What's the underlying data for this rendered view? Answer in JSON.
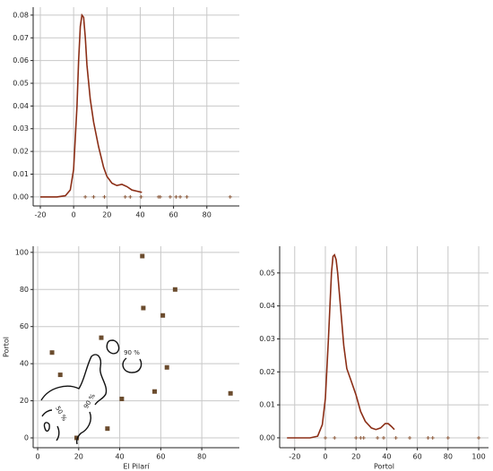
{
  "chart_data": [
    {
      "type": "line",
      "color": "#8b2e16",
      "rug_color": "#8b5a3c",
      "grid": true,
      "x": [
        -20,
        -10,
        -5,
        -2,
        0,
        2,
        3,
        4,
        5,
        6,
        7,
        8,
        10,
        12,
        15,
        18,
        20,
        23,
        26,
        29,
        32,
        35,
        38,
        41
      ],
      "values": [
        0,
        0,
        0.0005,
        0.003,
        0.012,
        0.04,
        0.06,
        0.075,
        0.08,
        0.079,
        0.07,
        0.058,
        0.043,
        0.033,
        0.022,
        0.013,
        0.009,
        0.006,
        0.005,
        0.0055,
        0.0045,
        0.003,
        0.0025,
        0.002
      ],
      "rug": [
        7,
        12,
        18.5,
        31,
        34,
        40.5,
        51,
        52,
        58,
        61.5,
        64,
        68,
        94
      ],
      "xlim": [
        -24.3,
        99.5
      ],
      "xticks": [
        -20,
        0,
        20,
        40,
        60,
        80
      ],
      "ylim": [
        -0.004,
        0.0835
      ],
      "yticks": [
        {
          "value": 0,
          "label": "0.00"
        },
        {
          "value": 0.01,
          "label": "0.01"
        },
        {
          "value": 0.02,
          "label": "0.02"
        },
        {
          "value": 0.03,
          "label": "0.03"
        },
        {
          "value": 0.04,
          "label": "0.04"
        },
        {
          "value": 0.05,
          "label": "0.05"
        },
        {
          "value": 0.06,
          "label": "0.06"
        },
        {
          "value": 0.07,
          "label": "0.07"
        },
        {
          "value": 0.08,
          "label": "0.08"
        }
      ]
    },
    {
      "type": "scatter",
      "color": "#6b4c2e",
      "grid": true,
      "xlabel": "El Pilarí",
      "ylabel": "Portol",
      "x": [
        7,
        11,
        19,
        31,
        34,
        41,
        51,
        51.5,
        57,
        61,
        63,
        67,
        94
      ],
      "values": [
        46,
        34,
        0,
        54,
        5,
        21,
        98,
        70,
        25,
        66,
        38,
        80,
        24
      ],
      "contour_labels": [
        "90 %",
        "90 %",
        "50 %"
      ],
      "xlim": [
        -2.2,
        98.3
      ],
      "xticks": [
        0,
        20,
        40,
        60,
        80
      ],
      "ylim": [
        -5.3,
        103.3
      ],
      "yticks": [
        0,
        20,
        40,
        60,
        80,
        100
      ]
    },
    {
      "type": "line",
      "color": "#8b2e16",
      "rug_color": "#8b5a3c",
      "grid": true,
      "xlabel": "Portol",
      "x": [
        -25,
        -10,
        -5,
        -2,
        0,
        2,
        3,
        4,
        5,
        6,
        7,
        8,
        10,
        12,
        14,
        17,
        20,
        23,
        26,
        30,
        33,
        36,
        39,
        41,
        43,
        45
      ],
      "values": [
        0,
        0,
        0.0005,
        0.004,
        0.012,
        0.03,
        0.04,
        0.05,
        0.055,
        0.0555,
        0.054,
        0.05,
        0.039,
        0.028,
        0.021,
        0.017,
        0.013,
        0.008,
        0.005,
        0.003,
        0.0025,
        0.003,
        0.0043,
        0.0043,
        0.0035,
        0.0025
      ],
      "rug": [
        0,
        6,
        20,
        23,
        25,
        34,
        38,
        46,
        55,
        67,
        70,
        80,
        100
      ],
      "xlim": [
        -29.8,
        106.4
      ],
      "xticks": [
        -20,
        0,
        20,
        40,
        60,
        80,
        100
      ],
      "ylim": [
        -0.003,
        0.0581
      ],
      "yticks": [
        {
          "value": 0,
          "label": "0.00"
        },
        {
          "value": 0.01,
          "label": "0.01"
        },
        {
          "value": 0.02,
          "label": "0.02"
        },
        {
          "value": 0.03,
          "label": "0.03"
        },
        {
          "value": 0.04,
          "label": "0.04"
        },
        {
          "value": 0.05,
          "label": "0.05"
        }
      ]
    }
  ]
}
